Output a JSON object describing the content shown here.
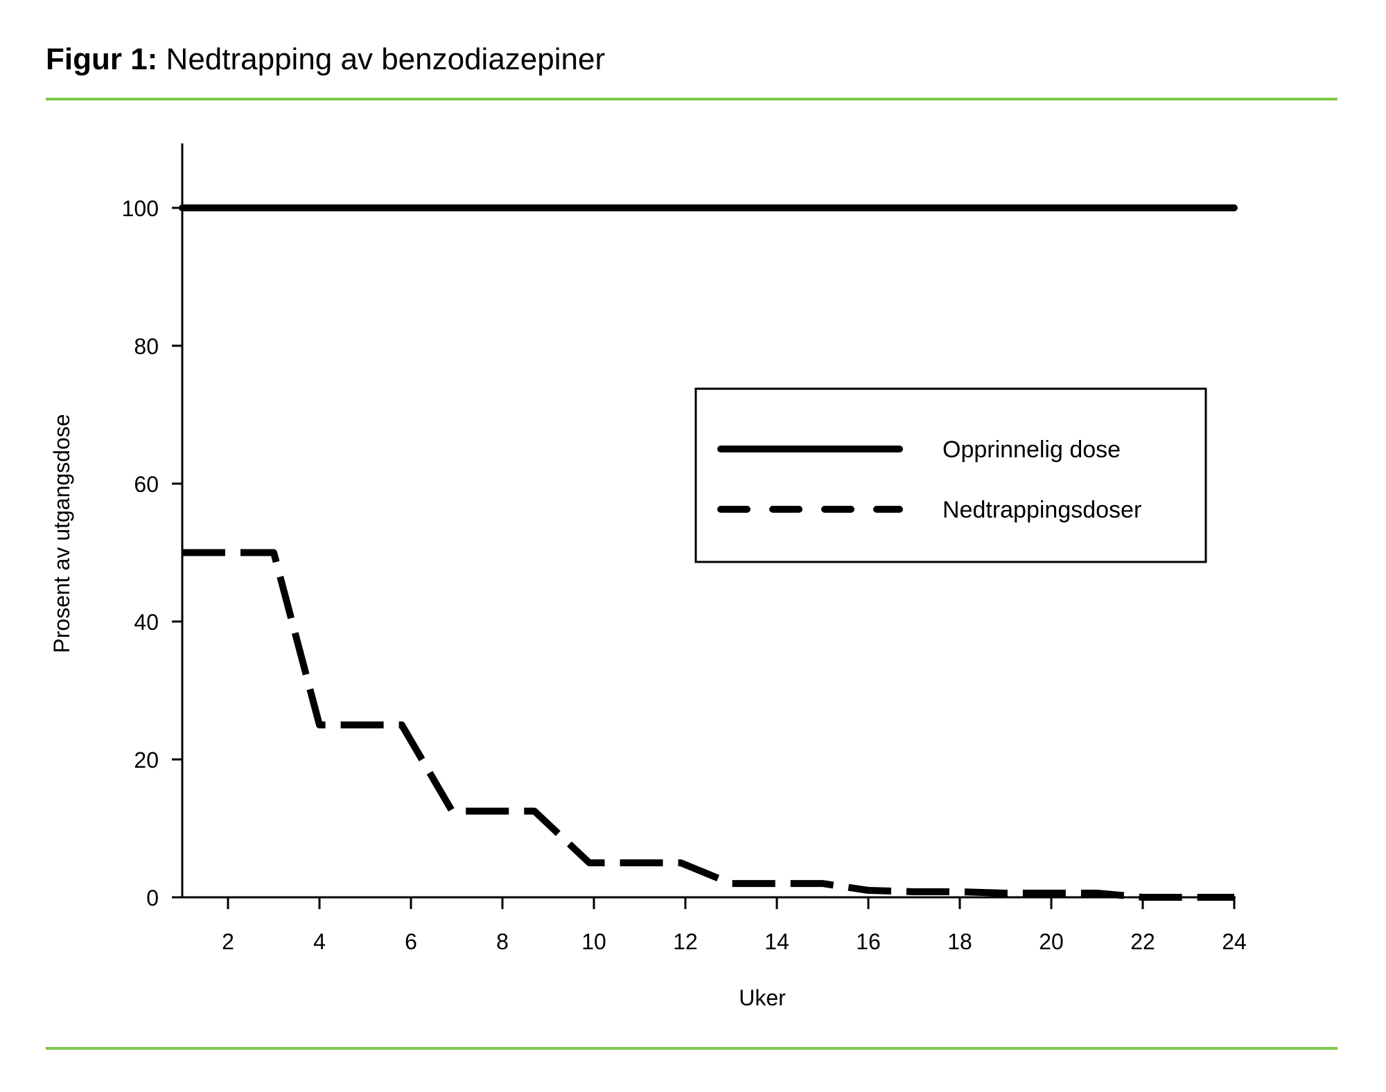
{
  "figure": {
    "title_lead": "Figur 1:",
    "title_text": " Nedtrapping av benzodiazepiner",
    "accent_color": "#7dc84a"
  },
  "chart_data": {
    "type": "line",
    "title": "Figur 1: Nedtrapping av benzodiazepiner",
    "xlabel": "Uker",
    "ylabel": "Prosent av utgangsdose",
    "xlim": [
      1,
      24
    ],
    "ylim": [
      0,
      110
    ],
    "x_ticks": [
      2,
      4,
      6,
      8,
      10,
      12,
      14,
      16,
      18,
      20,
      22,
      24
    ],
    "y_ticks": [
      0,
      20,
      40,
      60,
      80,
      100
    ],
    "grid": false,
    "legend_position": "upper right (inside plot)",
    "series": [
      {
        "name": "Opprinnelig dose",
        "style": "solid",
        "color": "#000000",
        "points": [
          [
            1,
            100
          ],
          [
            24,
            100
          ]
        ]
      },
      {
        "name": "Nedtrappingsdoser",
        "style": "dashed",
        "color": "#000000",
        "points": [
          [
            1,
            50
          ],
          [
            3,
            50
          ],
          [
            4,
            25
          ],
          [
            5.8,
            25
          ],
          [
            6.9,
            12.5
          ],
          [
            8.7,
            12.5
          ],
          [
            9.9,
            5
          ],
          [
            11.9,
            5
          ],
          [
            13,
            2
          ],
          [
            15,
            2
          ],
          [
            16,
            1
          ],
          [
            17,
            0.8
          ],
          [
            18,
            0.8
          ],
          [
            19,
            0.6
          ],
          [
            21,
            0.6
          ],
          [
            22,
            0
          ],
          [
            24,
            0
          ]
        ]
      }
    ]
  }
}
